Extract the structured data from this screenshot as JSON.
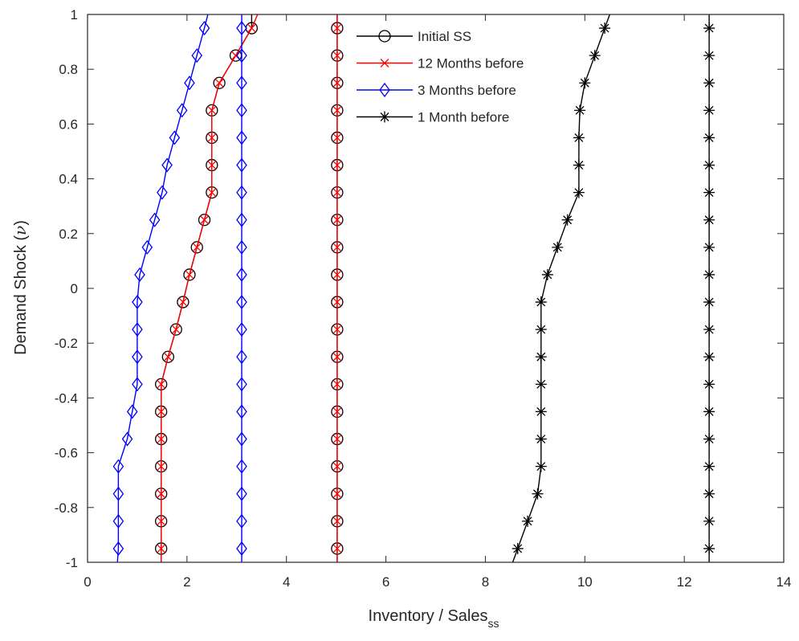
{
  "chart_data": {
    "type": "line",
    "title": "",
    "xlabel": "Inventory / Sales",
    "xlabel_subscript": "ss",
    "ylabel": "Demand Shock (",
    "ylabel_symbol": "ν",
    "ylabel_close": ")",
    "xlim": [
      0,
      14
    ],
    "ylim": [
      -1,
      1
    ],
    "xticks": [
      0,
      2,
      4,
      6,
      8,
      10,
      12,
      14
    ],
    "yticks": [
      -1,
      -0.8,
      -0.6,
      -0.4,
      -0.2,
      0,
      0.2,
      0.4,
      0.6,
      0.8,
      1
    ],
    "grid": false,
    "legend_location": "top-center",
    "y": [
      -0.95,
      -0.85,
      -0.75,
      -0.65,
      -0.55,
      -0.45,
      -0.35,
      -0.25,
      -0.15,
      -0.05,
      0.05,
      0.15,
      0.25,
      0.35,
      0.45,
      0.55,
      0.65,
      0.75,
      0.85,
      0.95
    ],
    "series": [
      {
        "name": "Initial SS",
        "color": "#000000",
        "marker": "circle",
        "legend_marker": "circle",
        "lines": [
          {
            "x": [
              5.02,
              5.02,
              5.02,
              5.02,
              5.02,
              5.02,
              5.02,
              5.02,
              5.02,
              5.02,
              5.02,
              5.02,
              5.02,
              5.02,
              5.02,
              5.02,
              5.02,
              5.02,
              5.02,
              5.02
            ]
          },
          {
            "x": [
              1.48,
              1.48,
              1.48,
              1.48,
              1.48,
              1.48,
              1.48,
              1.62,
              1.78,
              1.92,
              2.05,
              2.2,
              2.35,
              2.5,
              2.5,
              2.5,
              2.5,
              2.65,
              2.98,
              3.3
            ]
          }
        ]
      },
      {
        "name": "12 Months before",
        "color": "#ff0000",
        "marker": "x",
        "legend_marker": "x",
        "lines": [
          {
            "x": [
              5.02,
              5.02,
              5.02,
              5.02,
              5.02,
              5.02,
              5.02,
              5.02,
              5.02,
              5.02,
              5.02,
              5.02,
              5.02,
              5.02,
              5.02,
              5.02,
              5.02,
              5.02,
              5.02,
              5.02
            ]
          },
          {
            "x": [
              1.48,
              1.48,
              1.48,
              1.48,
              1.48,
              1.48,
              1.48,
              1.62,
              1.78,
              1.92,
              2.05,
              2.2,
              2.35,
              2.5,
              2.5,
              2.5,
              2.5,
              2.65,
              2.98,
              3.3
            ],
            "extend_y": [
              -1,
              1
            ],
            "extend_x": [
              1.48,
              3.42
            ]
          }
        ]
      },
      {
        "name": "3 Months before",
        "color": "#0000ff",
        "marker": "diamond",
        "legend_marker": "diamond",
        "lines": [
          {
            "x": [
              3.1,
              3.1,
              3.1,
              3.1,
              3.1,
              3.1,
              3.1,
              3.1,
              3.1,
              3.1,
              3.1,
              3.1,
              3.1,
              3.1,
              3.1,
              3.1,
              3.1,
              3.1,
              3.1,
              3.1
            ]
          },
          {
            "x": [
              0.62,
              0.62,
              0.62,
              0.62,
              0.8,
              0.9,
              1.0,
              1.0,
              1.0,
              1.0,
              1.05,
              1.2,
              1.35,
              1.5,
              1.6,
              1.75,
              1.9,
              2.05,
              2.2,
              2.35
            ],
            "extend_y": [
              -1,
              1
            ],
            "extend_x": [
              0.6,
              2.42
            ]
          }
        ]
      },
      {
        "name": "1 Month before",
        "color": "#000000",
        "marker": "asterisk",
        "legend_marker": "asterisk",
        "lines": [
          {
            "x": [
              12.5,
              12.5,
              12.5,
              12.5,
              12.5,
              12.5,
              12.5,
              12.5,
              12.5,
              12.5,
              12.5,
              12.5,
              12.5,
              12.5,
              12.5,
              12.5,
              12.5,
              12.5,
              12.5,
              12.5
            ]
          },
          {
            "x": [
              8.65,
              8.85,
              9.05,
              9.12,
              9.12,
              9.12,
              9.12,
              9.12,
              9.12,
              9.12,
              9.25,
              9.45,
              9.65,
              9.88,
              9.88,
              9.88,
              9.9,
              10.0,
              10.2,
              10.4
            ],
            "extend_y": [
              -1,
              1
            ],
            "extend_x": [
              8.55,
              10.5
            ]
          }
        ]
      }
    ]
  }
}
